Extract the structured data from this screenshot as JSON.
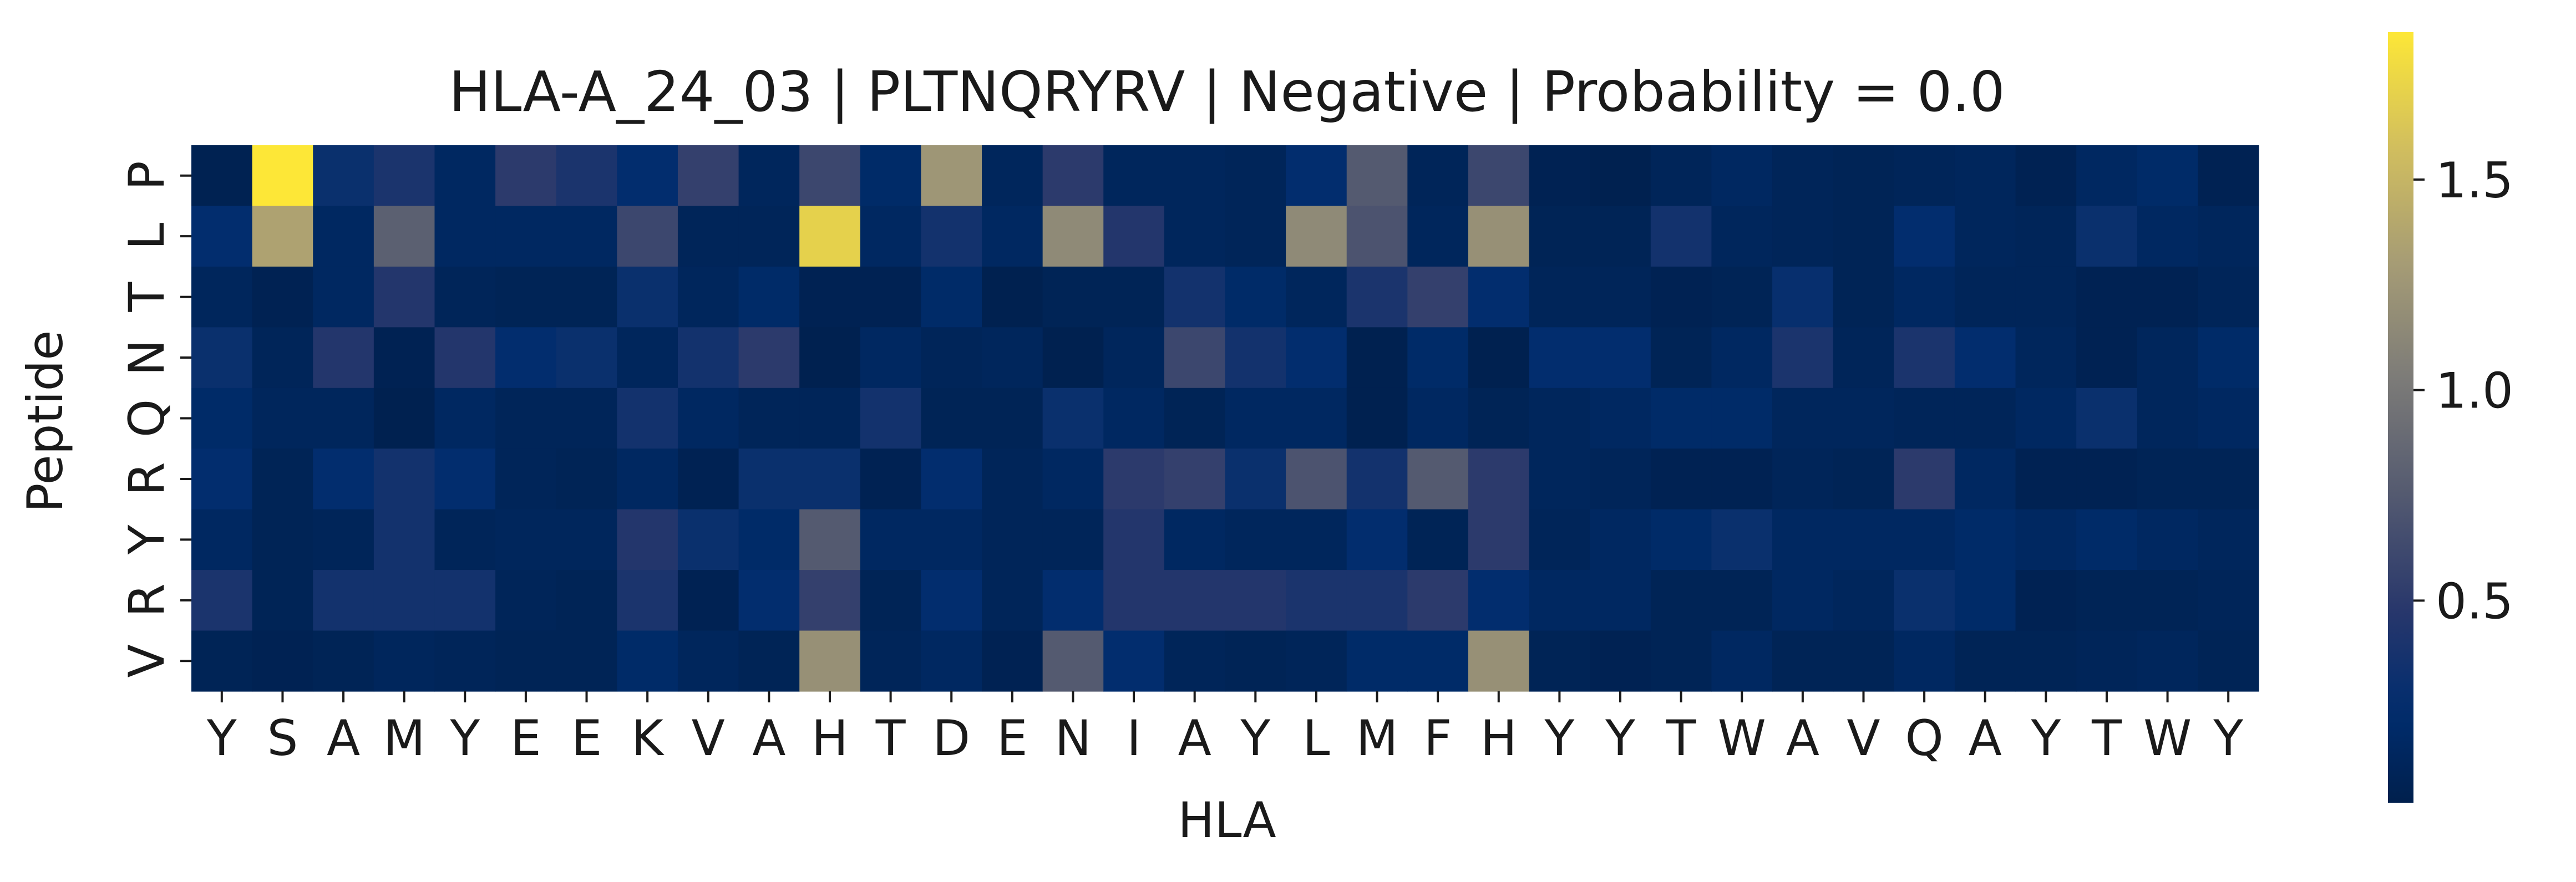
{
  "chart_data": {
    "type": "heatmap",
    "title": "HLA-A_24_03 | PLTNQRYRV | Negative | Probability = 0.0",
    "xlabel": "HLA",
    "ylabel": "Peptide",
    "x_tick_labels": [
      "Y",
      "S",
      "A",
      "M",
      "Y",
      "E",
      "E",
      "K",
      "V",
      "A",
      "H",
      "T",
      "D",
      "E",
      "N",
      "I",
      "A",
      "Y",
      "L",
      "M",
      "F",
      "H",
      "Y",
      "Y",
      "T",
      "W",
      "A",
      "V",
      "Q",
      "A",
      "Y",
      "T",
      "W",
      "Y"
    ],
    "y_tick_labels": [
      "P",
      "L",
      "T",
      "N",
      "Q",
      "R",
      "Y",
      "R",
      "V"
    ],
    "colormap": "cividis",
    "colorbar_range": [
      0.02,
      1.85
    ],
    "colorbar_ticks": [
      0.5,
      1.0,
      1.5
    ],
    "colorbar_tick_labels": [
      "0.5",
      "1.0",
      "1.5"
    ],
    "values": [
      [
        0.05,
        1.85,
        0.3,
        0.4,
        0.15,
        0.5,
        0.4,
        0.25,
        0.55,
        0.12,
        0.6,
        0.2,
        1.25,
        0.12,
        0.5,
        0.12,
        0.12,
        0.1,
        0.25,
        0.75,
        0.1,
        0.6,
        0.06,
        0.04,
        0.1,
        0.15,
        0.1,
        0.08,
        0.1,
        0.12,
        0.06,
        0.15,
        0.2,
        0.06
      ],
      [
        0.25,
        1.35,
        0.15,
        0.8,
        0.15,
        0.15,
        0.15,
        0.6,
        0.1,
        0.1,
        1.7,
        0.15,
        0.35,
        0.15,
        1.15,
        0.45,
        0.12,
        0.1,
        1.15,
        0.7,
        0.12,
        1.2,
        0.08,
        0.08,
        0.35,
        0.12,
        0.1,
        0.08,
        0.25,
        0.12,
        0.1,
        0.3,
        0.15,
        0.12
      ],
      [
        0.12,
        0.06,
        0.15,
        0.45,
        0.1,
        0.08,
        0.08,
        0.3,
        0.12,
        0.2,
        0.06,
        0.06,
        0.2,
        0.04,
        0.08,
        0.08,
        0.35,
        0.2,
        0.12,
        0.4,
        0.55,
        0.25,
        0.1,
        0.1,
        0.06,
        0.08,
        0.28,
        0.08,
        0.15,
        0.1,
        0.1,
        0.06,
        0.06,
        0.1
      ],
      [
        0.3,
        0.1,
        0.45,
        0.06,
        0.45,
        0.25,
        0.3,
        0.12,
        0.35,
        0.5,
        0.04,
        0.15,
        0.1,
        0.12,
        0.04,
        0.12,
        0.6,
        0.35,
        0.25,
        0.04,
        0.2,
        0.04,
        0.25,
        0.25,
        0.08,
        0.15,
        0.4,
        0.1,
        0.4,
        0.25,
        0.12,
        0.06,
        0.12,
        0.2
      ],
      [
        0.2,
        0.12,
        0.12,
        0.04,
        0.15,
        0.1,
        0.1,
        0.35,
        0.15,
        0.1,
        0.1,
        0.35,
        0.08,
        0.08,
        0.3,
        0.15,
        0.08,
        0.15,
        0.15,
        0.04,
        0.15,
        0.08,
        0.12,
        0.15,
        0.2,
        0.2,
        0.12,
        0.12,
        0.1,
        0.1,
        0.15,
        0.3,
        0.12,
        0.15
      ],
      [
        0.25,
        0.08,
        0.25,
        0.35,
        0.25,
        0.1,
        0.08,
        0.15,
        0.06,
        0.3,
        0.3,
        0.06,
        0.25,
        0.1,
        0.15,
        0.5,
        0.55,
        0.3,
        0.7,
        0.35,
        0.75,
        0.5,
        0.12,
        0.1,
        0.06,
        0.06,
        0.1,
        0.08,
        0.5,
        0.15,
        0.06,
        0.06,
        0.08,
        0.08
      ],
      [
        0.15,
        0.08,
        0.1,
        0.35,
        0.1,
        0.12,
        0.12,
        0.45,
        0.3,
        0.2,
        0.75,
        0.15,
        0.15,
        0.1,
        0.1,
        0.45,
        0.15,
        0.12,
        0.12,
        0.25,
        0.08,
        0.5,
        0.1,
        0.15,
        0.2,
        0.3,
        0.15,
        0.15,
        0.15,
        0.2,
        0.15,
        0.2,
        0.15,
        0.12
      ],
      [
        0.4,
        0.08,
        0.35,
        0.35,
        0.35,
        0.1,
        0.08,
        0.4,
        0.06,
        0.25,
        0.55,
        0.08,
        0.25,
        0.1,
        0.25,
        0.45,
        0.45,
        0.45,
        0.4,
        0.4,
        0.5,
        0.25,
        0.15,
        0.15,
        0.08,
        0.08,
        0.15,
        0.12,
        0.3,
        0.2,
        0.06,
        0.08,
        0.08,
        0.1
      ],
      [
        0.08,
        0.06,
        0.08,
        0.12,
        0.1,
        0.08,
        0.08,
        0.2,
        0.12,
        0.08,
        1.2,
        0.1,
        0.15,
        0.06,
        0.75,
        0.25,
        0.1,
        0.08,
        0.1,
        0.2,
        0.2,
        1.2,
        0.08,
        0.06,
        0.08,
        0.15,
        0.08,
        0.08,
        0.15,
        0.08,
        0.08,
        0.1,
        0.12,
        0.08
      ]
    ]
  }
}
